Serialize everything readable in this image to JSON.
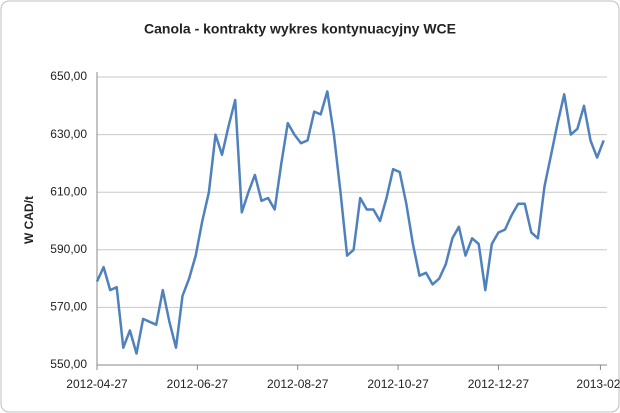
{
  "chart_data": {
    "type": "line",
    "title": "Canola - kontrakty  wykres kontynuacyjny WCE",
    "y_label": "W CAD/t",
    "x": [
      "2012-04-27",
      "2012-05-01",
      "2012-05-05",
      "2012-05-09",
      "2012-05-13",
      "2012-05-17",
      "2012-05-21",
      "2012-05-25",
      "2012-05-29",
      "2012-06-02",
      "2012-06-06",
      "2012-06-10",
      "2012-06-14",
      "2012-06-18",
      "2012-06-22",
      "2012-06-26",
      "2012-06-30",
      "2012-07-04",
      "2012-07-08",
      "2012-07-12",
      "2012-07-16",
      "2012-07-20",
      "2012-07-24",
      "2012-07-28",
      "2012-08-01",
      "2012-08-05",
      "2012-08-09",
      "2012-08-13",
      "2012-08-17",
      "2012-08-21",
      "2012-08-25",
      "2012-08-29",
      "2012-09-02",
      "2012-09-06",
      "2012-09-10",
      "2012-09-14",
      "2012-09-18",
      "2012-09-22",
      "2012-09-26",
      "2012-09-30",
      "2012-10-04",
      "2012-10-08",
      "2012-10-12",
      "2012-10-16",
      "2012-10-20",
      "2012-10-24",
      "2012-10-28",
      "2012-11-01",
      "2012-11-05",
      "2012-11-09",
      "2012-11-13",
      "2012-11-17",
      "2012-11-21",
      "2012-11-25",
      "2012-11-29",
      "2012-12-03",
      "2012-12-07",
      "2012-12-11",
      "2012-12-15",
      "2012-12-19",
      "2012-12-23",
      "2012-12-27",
      "2012-12-31",
      "2013-01-04",
      "2013-01-08",
      "2013-01-12",
      "2013-01-16",
      "2013-01-20",
      "2013-01-24",
      "2013-01-28",
      "2013-02-01",
      "2013-02-05",
      "2013-02-09",
      "2013-02-13",
      "2013-02-17",
      "2013-02-21",
      "2013-02-25",
      "2013-03-01"
    ],
    "series": [
      {
        "name": "Canola",
        "color": "#4f81bd",
        "values": [
          579,
          584,
          576,
          577,
          556,
          562,
          554,
          566,
          565,
          564,
          576,
          565,
          556,
          574,
          580,
          588,
          600,
          610,
          630,
          623,
          633,
          642,
          603,
          610,
          616,
          607,
          608,
          604,
          620,
          634,
          630,
          627,
          628,
          638,
          637,
          645,
          630,
          610,
          588,
          590,
          608,
          604,
          604,
          600,
          608,
          618,
          617,
          606,
          592,
          581,
          582,
          578,
          580,
          585,
          594,
          598,
          588,
          594,
          592,
          576,
          592,
          596,
          597,
          602,
          606,
          606,
          596,
          594,
          612,
          623,
          634,
          644,
          630,
          632,
          640,
          628,
          622,
          628
        ]
      }
    ],
    "xlim": [
      "2012-04-27",
      "2013-03-03"
    ],
    "xticks": [
      "2012-04-27",
      "2012-06-27",
      "2012-08-27",
      "2012-10-27",
      "2012-12-27",
      {
        "value": "2013-02-27",
        "label": "2013-02-"
      }
    ],
    "ylim": [
      550,
      650
    ],
    "yticks": [
      {
        "value": 550,
        "label": "550,00"
      },
      {
        "value": 570,
        "label": "570,00"
      },
      {
        "value": 590,
        "label": "590,00"
      },
      {
        "value": 610,
        "label": "610,00"
      },
      {
        "value": 630,
        "label": "630,00"
      },
      {
        "value": 650,
        "label": "650,00"
      }
    ],
    "grid": true
  }
}
